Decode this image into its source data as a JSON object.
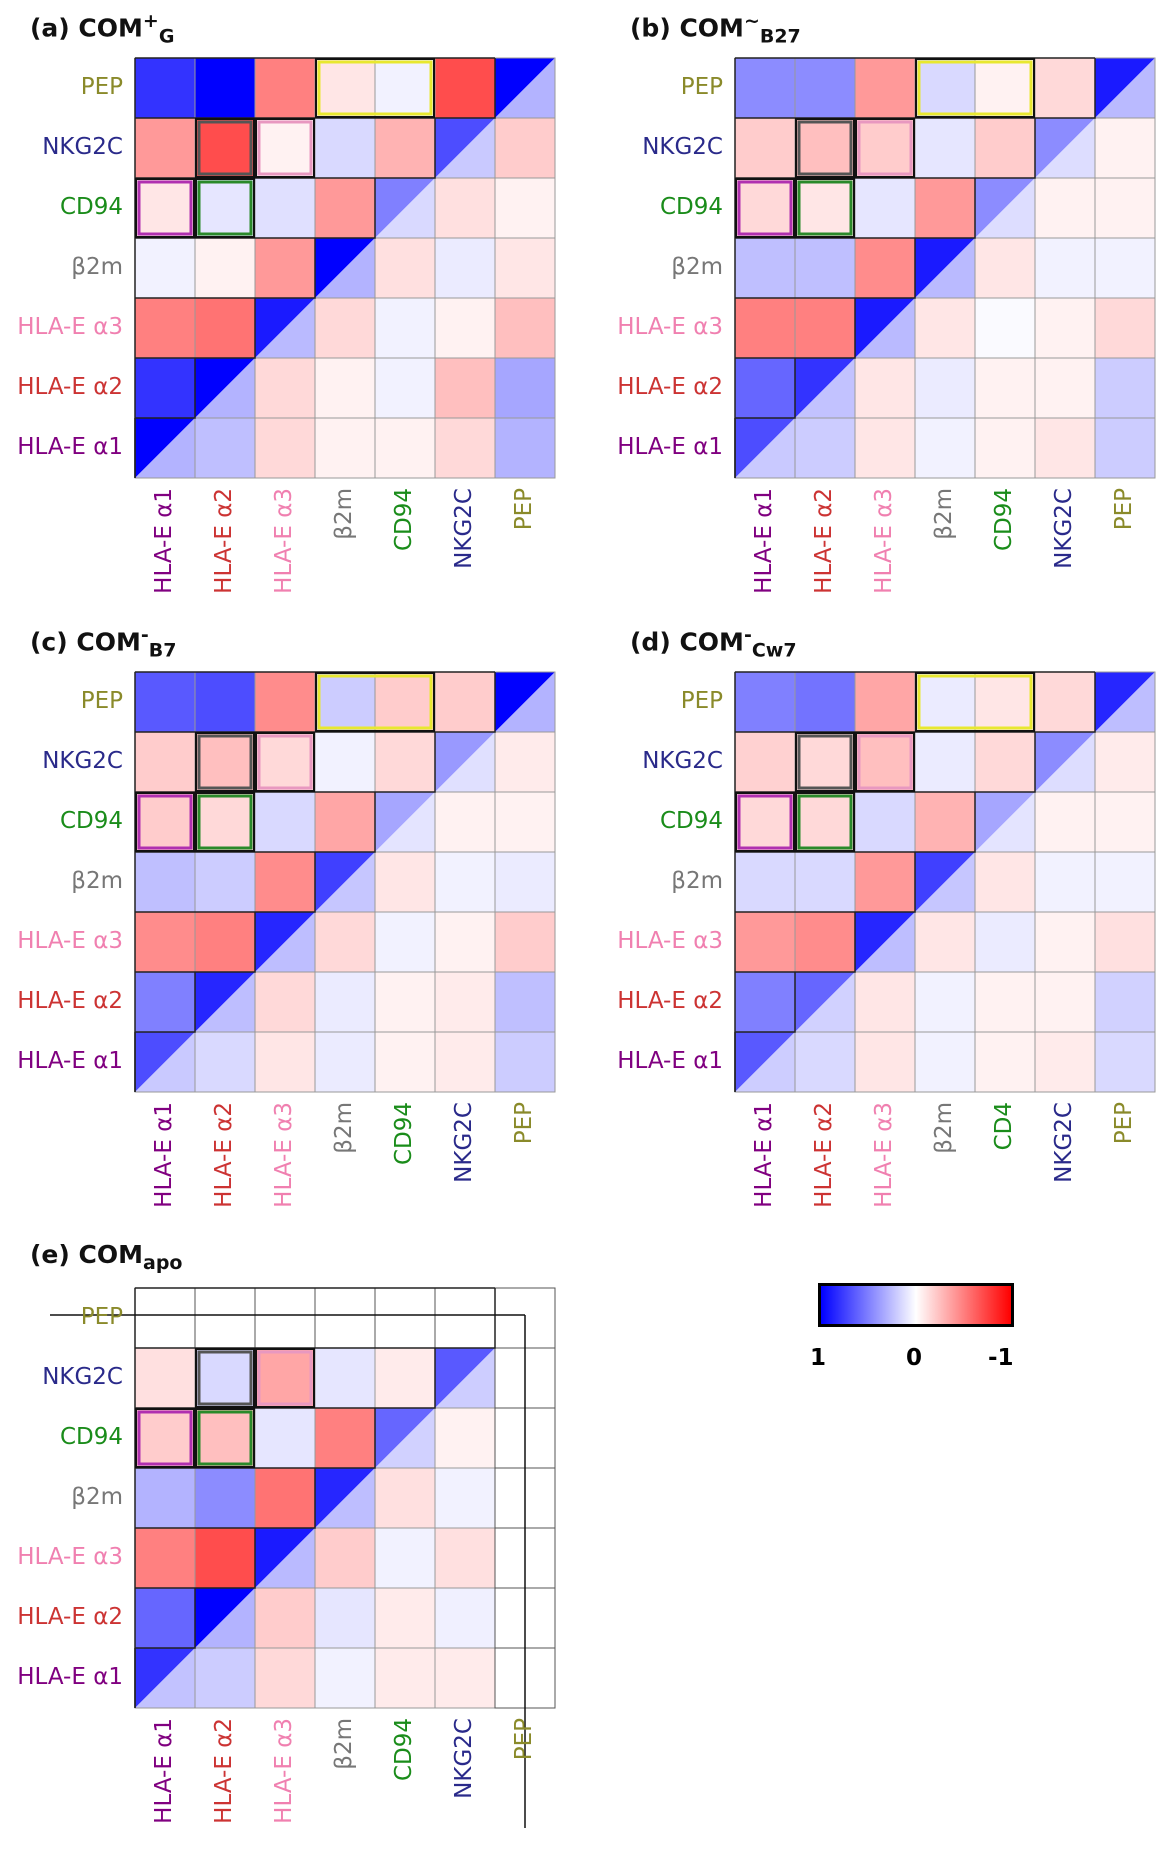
{
  "figure": {
    "colorbar": {
      "colors": [
        "#0000ff",
        "#ffffff",
        "#ff0000"
      ],
      "labels": [
        "1",
        "0",
        "-1"
      ]
    }
  },
  "label_colors": {
    "HLA-E α1": "#800080",
    "HLA-E α2": "#cc3333",
    "HLA-E α3": "#f080b0",
    "β2m": "#777777",
    "CD94": "#1a8c1a",
    "CD4": "#1a8c1a",
    "NKG2C": "#2a2a8a",
    "PEP": "#8a8a2a"
  },
  "chart_data": [
    {
      "type": "heatmap",
      "panel_label": "(a) COM",
      "sup": "+",
      "sub": "G",
      "row_labels": [
        "PEP",
        "NKG2C",
        "CD94",
        "β2m",
        "HLA-E α3",
        "HLA-E α2",
        "HLA-E α1"
      ],
      "col_labels": [
        "HLA-E α1",
        "HLA-E α2",
        "HLA-E α3",
        "β2m",
        "CD94",
        "NKG2C",
        "PEP"
      ],
      "value_range": [
        -1,
        1
      ],
      "values": [
        [
          0.8,
          1.0,
          -0.5,
          -0.1,
          0.05,
          -0.7,
          1.0
        ],
        [
          -0.4,
          -0.7,
          -0.05,
          0.15,
          -0.3,
          0.7,
          -0.2
        ],
        [
          -0.1,
          0.1,
          0.12,
          -0.4,
          0.5,
          -0.12,
          -0.05
        ],
        [
          0.05,
          -0.05,
          -0.4,
          1.0,
          -0.12,
          0.08,
          -0.1
        ],
        [
          -0.5,
          -0.55,
          0.9,
          -0.15,
          0.05,
          -0.05,
          -0.25
        ],
        [
          0.8,
          1.0,
          -0.15,
          -0.05,
          0.05,
          -0.25,
          0.35
        ],
        [
          1.0,
          0.25,
          -0.15,
          -0.05,
          -0.05,
          -0.15,
          0.3
        ]
      ],
      "highlights": [
        {
          "row": 0,
          "cols": [
            3,
            4
          ],
          "color": "#e8e830"
        },
        {
          "row": 1,
          "cols": [
            1,
            1
          ],
          "color": "#555555"
        },
        {
          "row": 1,
          "cols": [
            2,
            2
          ],
          "color": "#e898c0"
        },
        {
          "row": 2,
          "cols": [
            0,
            0
          ],
          "color": "#b030b0"
        },
        {
          "row": 2,
          "cols": [
            1,
            1
          ],
          "color": "#2a8a2a"
        }
      ],
      "missing_pep": false
    },
    {
      "type": "heatmap",
      "panel_label": "(b) COM",
      "sup": "~",
      "sub": "B27",
      "row_labels": [
        "PEP",
        "NKG2C",
        "CD94",
        "β2m",
        "HLA-E α3",
        "HLA-E α2",
        "HLA-E α1"
      ],
      "col_labels": [
        "HLA-E α1",
        "HLA-E α2",
        "HLA-E α3",
        "β2m",
        "CD94",
        "NKG2C",
        "PEP"
      ],
      "value_range": [
        -1,
        1
      ],
      "values": [
        [
          0.45,
          0.45,
          -0.4,
          0.15,
          -0.05,
          -0.15,
          0.9
        ],
        [
          -0.2,
          -0.25,
          -0.2,
          0.1,
          -0.2,
          0.45,
          -0.05
        ],
        [
          -0.15,
          -0.1,
          0.1,
          -0.4,
          0.45,
          -0.05,
          -0.05
        ],
        [
          0.25,
          0.25,
          -0.45,
          0.9,
          -0.1,
          0.05,
          0.05
        ],
        [
          -0.5,
          -0.5,
          0.9,
          -0.1,
          0.02,
          -0.05,
          -0.15
        ],
        [
          0.6,
          0.8,
          -0.1,
          0.08,
          -0.05,
          -0.05,
          0.2
        ],
        [
          0.7,
          0.2,
          -0.1,
          0.05,
          -0.05,
          -0.1,
          0.2
        ]
      ],
      "highlights": [
        {
          "row": 0,
          "cols": [
            3,
            4
          ],
          "color": "#e8e830"
        },
        {
          "row": 1,
          "cols": [
            1,
            1
          ],
          "color": "#555555"
        },
        {
          "row": 1,
          "cols": [
            2,
            2
          ],
          "color": "#e898c0"
        },
        {
          "row": 2,
          "cols": [
            0,
            0
          ],
          "color": "#b030b0"
        },
        {
          "row": 2,
          "cols": [
            1,
            1
          ],
          "color": "#2a8a2a"
        }
      ],
      "missing_pep": false
    },
    {
      "type": "heatmap",
      "panel_label": "(c) COM",
      "sup": "-",
      "sub": "B7",
      "row_labels": [
        "PEP",
        "NKG2C",
        "CD94",
        "β2m",
        "HLA-E α3",
        "HLA-E α2",
        "HLA-E α1"
      ],
      "col_labels": [
        "HLA-E α1",
        "HLA-E α2",
        "HLA-E α3",
        "β2m",
        "CD94",
        "NKG2C",
        "PEP"
      ],
      "value_range": [
        -1,
        1
      ],
      "values": [
        [
          0.65,
          0.7,
          -0.45,
          0.2,
          -0.2,
          -0.2,
          1.0
        ],
        [
          -0.2,
          -0.25,
          -0.15,
          0.05,
          -0.15,
          0.4,
          -0.08
        ],
        [
          -0.2,
          -0.15,
          0.15,
          -0.35,
          0.35,
          -0.05,
          -0.05
        ],
        [
          0.25,
          0.2,
          -0.45,
          0.75,
          -0.1,
          0.05,
          0.08
        ],
        [
          -0.45,
          -0.5,
          0.85,
          -0.15,
          0.05,
          -0.05,
          -0.2
        ],
        [
          0.5,
          0.85,
          -0.15,
          0.08,
          -0.05,
          -0.08,
          0.25
        ],
        [
          0.7,
          0.15,
          -0.1,
          0.08,
          -0.05,
          -0.08,
          0.2
        ]
      ],
      "highlights": [
        {
          "row": 0,
          "cols": [
            3,
            4
          ],
          "color": "#e8e830"
        },
        {
          "row": 1,
          "cols": [
            1,
            1
          ],
          "color": "#555555"
        },
        {
          "row": 1,
          "cols": [
            2,
            2
          ],
          "color": "#e898c0"
        },
        {
          "row": 2,
          "cols": [
            0,
            0
          ],
          "color": "#b030b0"
        },
        {
          "row": 2,
          "cols": [
            1,
            1
          ],
          "color": "#2a8a2a"
        }
      ],
      "missing_pep": false
    },
    {
      "type": "heatmap",
      "panel_label": "(d) COM",
      "sup": "-",
      "sub": "Cw7",
      "row_labels": [
        "PEP",
        "NKG2C",
        "CD94",
        "β2m",
        "HLA-E α3",
        "HLA-E α2",
        "HLA-E α1"
      ],
      "col_labels": [
        "HLA-E α1",
        "HLA-E α2",
        "HLA-E α3",
        "β2m",
        "CD4",
        "NKG2C",
        "PEP"
      ],
      "value_range": [
        -1,
        1
      ],
      "values": [
        [
          0.5,
          0.55,
          -0.35,
          0.08,
          -0.1,
          -0.15,
          0.85
        ],
        [
          -0.18,
          -0.15,
          -0.25,
          0.08,
          -0.15,
          0.45,
          -0.08
        ],
        [
          -0.15,
          -0.15,
          0.15,
          -0.3,
          0.35,
          -0.05,
          -0.05
        ],
        [
          0.15,
          0.15,
          -0.4,
          0.75,
          -0.1,
          0.05,
          0.05
        ],
        [
          -0.4,
          -0.45,
          0.85,
          -0.1,
          0.08,
          -0.05,
          -0.12
        ],
        [
          0.5,
          0.6,
          -0.1,
          0.05,
          -0.05,
          -0.05,
          0.18
        ],
        [
          0.65,
          0.15,
          -0.1,
          0.05,
          -0.05,
          -0.08,
          0.15
        ]
      ],
      "highlights": [
        {
          "row": 0,
          "cols": [
            3,
            4
          ],
          "color": "#e8e830"
        },
        {
          "row": 1,
          "cols": [
            1,
            1
          ],
          "color": "#555555"
        },
        {
          "row": 1,
          "cols": [
            2,
            2
          ],
          "color": "#e898c0"
        },
        {
          "row": 2,
          "cols": [
            0,
            0
          ],
          "color": "#b030b0"
        },
        {
          "row": 2,
          "cols": [
            1,
            1
          ],
          "color": "#2a8a2a"
        }
      ],
      "missing_pep": false
    },
    {
      "type": "heatmap",
      "panel_label": "(e) COM",
      "sup": "",
      "sub": "apo",
      "row_labels": [
        "PEP",
        "NKG2C",
        "CD94",
        "β2m",
        "HLA-E α3",
        "HLA-E α2",
        "HLA-E α1"
      ],
      "col_labels": [
        "HLA-E α1",
        "HLA-E α2",
        "HLA-E α3",
        "β2m",
        "CD94",
        "NKG2C",
        "PEP"
      ],
      "value_range": [
        -1,
        1
      ],
      "values": [
        [
          null,
          null,
          null,
          null,
          null,
          null,
          null
        ],
        [
          -0.12,
          0.15,
          -0.35,
          0.1,
          -0.08,
          0.65,
          null
        ],
        [
          -0.2,
          -0.25,
          0.1,
          -0.5,
          0.6,
          -0.05,
          null
        ],
        [
          0.3,
          0.45,
          -0.55,
          0.85,
          -0.12,
          0.05,
          null
        ],
        [
          -0.5,
          -0.7,
          0.9,
          -0.2,
          0.05,
          -0.12,
          null
        ],
        [
          0.6,
          1.0,
          -0.2,
          0.1,
          -0.08,
          0.06,
          null
        ],
        [
          0.8,
          0.2,
          -0.15,
          0.05,
          -0.08,
          -0.08,
          null
        ]
      ],
      "highlights": [
        {
          "row": 1,
          "cols": [
            1,
            1
          ],
          "color": "#555555"
        },
        {
          "row": 1,
          "cols": [
            2,
            2
          ],
          "color": "#e898c0"
        },
        {
          "row": 2,
          "cols": [
            0,
            0
          ],
          "color": "#b030b0"
        },
        {
          "row": 2,
          "cols": [
            1,
            1
          ],
          "color": "#2a8a2a"
        }
      ],
      "missing_pep": true
    }
  ]
}
